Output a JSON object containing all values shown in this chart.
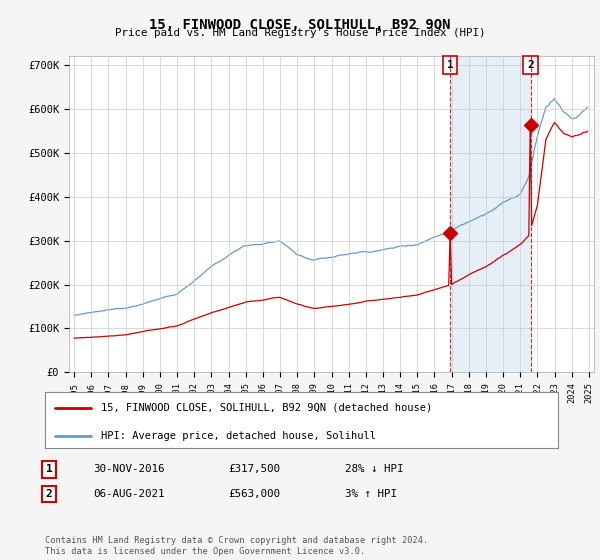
{
  "title": "15, FINWOOD CLOSE, SOLIHULL, B92 9QN",
  "subtitle": "Price paid vs. HM Land Registry's House Price Index (HPI)",
  "ylabel_values": [
    "£0",
    "£100K",
    "£200K",
    "£300K",
    "£400K",
    "£500K",
    "£600K",
    "£700K"
  ],
  "ylim": [
    0,
    720000
  ],
  "yticks": [
    0,
    100000,
    200000,
    300000,
    400000,
    500000,
    600000,
    700000
  ],
  "hpi_color": "#6699cc",
  "price_color": "#cc0000",
  "marker1_year": 2016.92,
  "marker1_price": 317500,
  "marker2_year": 2021.6,
  "marker2_price": 563000,
  "legend_label1": "15, FINWOOD CLOSE, SOLIHULL, B92 9QN (detached house)",
  "legend_label2": "HPI: Average price, detached house, Solihull",
  "table_row1": [
    "1",
    "30-NOV-2016",
    "£317,500",
    "28% ↓ HPI"
  ],
  "table_row2": [
    "2",
    "06-AUG-2021",
    "£563,000",
    "3% ↑ HPI"
  ],
  "footer": "Contains HM Land Registry data © Crown copyright and database right 2024.\nThis data is licensed under the Open Government Licence v3.0.",
  "bg_color": "#f5f5f5",
  "plot_bg_color": "#ffffff",
  "grid_color": "#cccccc",
  "shade_color": "#dce9f5"
}
